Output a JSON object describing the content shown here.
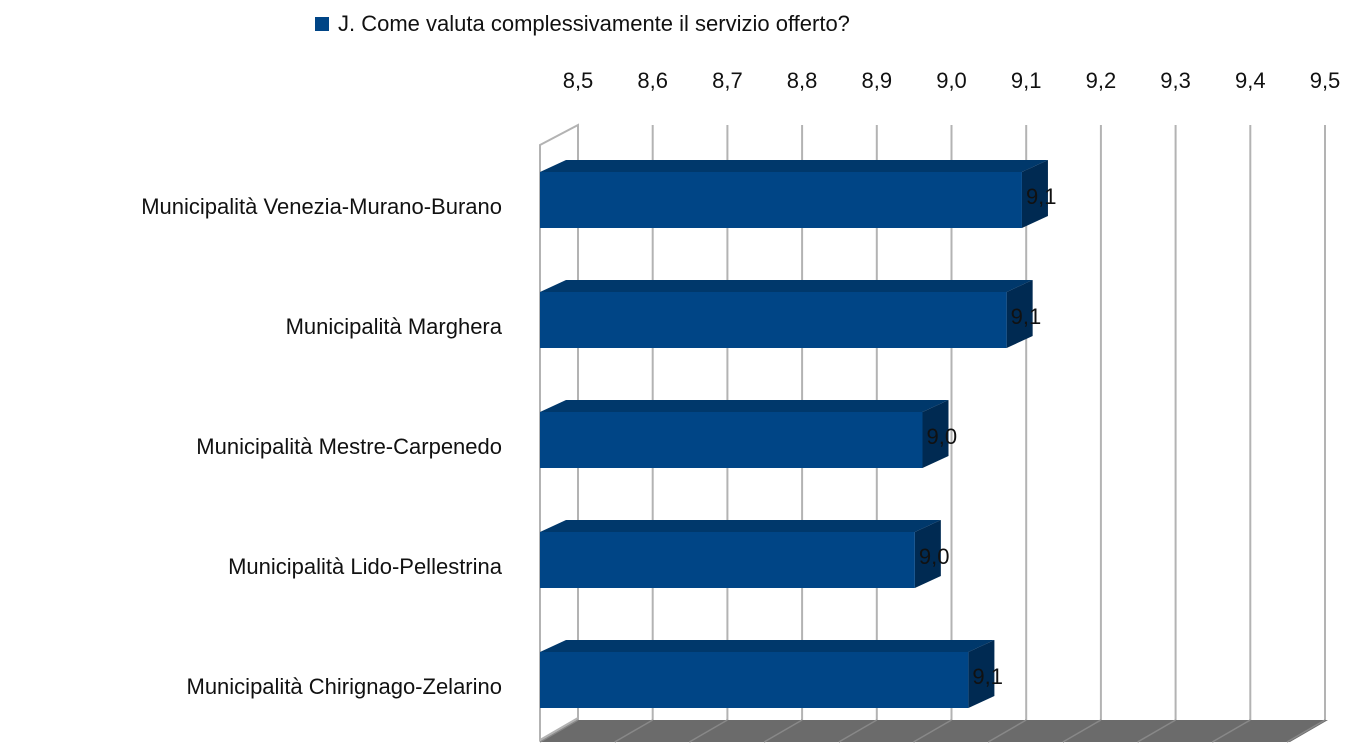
{
  "chart_data": {
    "type": "bar3d_horizontal",
    "series": [
      {
        "name": "J. Come valuta complessivamente il servizio offerto?",
        "color": "#004586",
        "values": [
          9.13,
          9.11,
          9.0,
          8.99,
          9.06
        ],
        "value_labels": [
          "9,1",
          "9,1",
          "9,0",
          "9,0",
          "9,1"
        ]
      }
    ],
    "categories": [
      "Municipalità Venezia-Murano-Burano",
      "Municipalità Marghera",
      "Municipalità Mestre-Carpenedo",
      "Municipalità Lido-Pellestrina",
      "Municipalità Chirignago-Zelarino"
    ],
    "xlim": [
      8.5,
      9.5
    ],
    "xticks": [
      {
        "value": 8.5,
        "label": "8,5"
      },
      {
        "value": 8.6,
        "label": "8,6"
      },
      {
        "value": 8.7,
        "label": "8,7"
      },
      {
        "value": 8.8,
        "label": "8,8"
      },
      {
        "value": 8.9,
        "label": "8,9"
      },
      {
        "value": 9.0,
        "label": "9,0"
      },
      {
        "value": 9.1,
        "label": "9,1"
      },
      {
        "value": 9.2,
        "label": "9,2"
      },
      {
        "value": 9.3,
        "label": "9,3"
      },
      {
        "value": 9.4,
        "label": "9,4"
      },
      {
        "value": 9.5,
        "label": "9,5"
      }
    ],
    "grid": true,
    "legend": "top"
  }
}
